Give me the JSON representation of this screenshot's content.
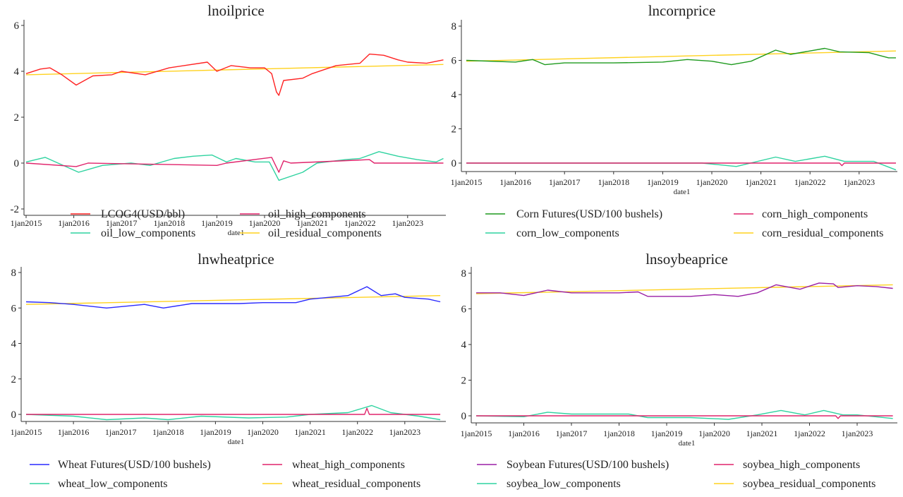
{
  "colors": {
    "red": "#ff2222",
    "pink": "#e0236b",
    "teal": "#2fd3a0",
    "yellow": "#ffd21f",
    "green": "#1e9a1e",
    "blue": "#2a2aff",
    "purple": "#9a1fa5"
  },
  "chart_data": [
    {
      "type": "line",
      "title": "lnoilprice",
      "xlabel": "date1",
      "ylabel": "",
      "xticks": [
        "1jan2015",
        "1jan2016",
        "1jan2017",
        "1jan2018",
        "1jan2019",
        "1jan2020",
        "1jan2021",
        "1jan2022",
        "1jan2023"
      ],
      "yticks": [
        "6",
        "4",
        "2",
        "0",
        "-2"
      ],
      "ylim": [
        -2,
        6
      ],
      "legend": "bottom",
      "series": [
        {
          "name": "LCOG4(USD/bbl)",
          "color": "red",
          "points": [
            [
              2015,
              3.9
            ],
            [
              2015.3,
              4.1
            ],
            [
              2015.5,
              4.15
            ],
            [
              2015.75,
              3.85
            ],
            [
              2016.05,
              3.4
            ],
            [
              2016.4,
              3.8
            ],
            [
              2016.8,
              3.85
            ],
            [
              2017,
              4.0
            ],
            [
              2017.5,
              3.85
            ],
            [
              2018,
              4.15
            ],
            [
              2018.8,
              4.4
            ],
            [
              2019,
              4.0
            ],
            [
              2019.3,
              4.25
            ],
            [
              2019.7,
              4.15
            ],
            [
              2020,
              4.15
            ],
            [
              2020.15,
              3.9
            ],
            [
              2020.25,
              3.1
            ],
            [
              2020.3,
              2.95
            ],
            [
              2020.4,
              3.6
            ],
            [
              2020.8,
              3.7
            ],
            [
              2021,
              3.9
            ],
            [
              2021.5,
              4.25
            ],
            [
              2022,
              4.35
            ],
            [
              2022.2,
              4.75
            ],
            [
              2022.5,
              4.7
            ],
            [
              2022.8,
              4.5
            ],
            [
              2023,
              4.4
            ],
            [
              2023.4,
              4.35
            ],
            [
              2023.75,
              4.5
            ]
          ]
        },
        {
          "name": "oil_high_components",
          "color": "pink",
          "points": [
            [
              2015,
              0
            ],
            [
              2016.05,
              -0.15
            ],
            [
              2016.3,
              0
            ],
            [
              2019,
              -0.1
            ],
            [
              2019.2,
              0
            ],
            [
              2020.15,
              0.25
            ],
            [
              2020.3,
              -0.4
            ],
            [
              2020.4,
              0.1
            ],
            [
              2020.55,
              0
            ],
            [
              2022.2,
              0.15
            ],
            [
              2022.3,
              0
            ],
            [
              2023.75,
              0
            ]
          ]
        },
        {
          "name": "oil_low_components",
          "color": "teal",
          "points": [
            [
              2015,
              0.05
            ],
            [
              2015.4,
              0.25
            ],
            [
              2016.1,
              -0.4
            ],
            [
              2016.6,
              -0.1
            ],
            [
              2017.2,
              0
            ],
            [
              2017.6,
              -0.1
            ],
            [
              2018.1,
              0.2
            ],
            [
              2018.5,
              0.3
            ],
            [
              2018.9,
              0.35
            ],
            [
              2019.2,
              0.05
            ],
            [
              2019.4,
              0.2
            ],
            [
              2019.8,
              0.05
            ],
            [
              2020.1,
              0.05
            ],
            [
              2020.3,
              -0.75
            ],
            [
              2020.8,
              -0.4
            ],
            [
              2021.1,
              0
            ],
            [
              2021.7,
              0.15
            ],
            [
              2022,
              0.2
            ],
            [
              2022.4,
              0.5
            ],
            [
              2022.8,
              0.3
            ],
            [
              2023.2,
              0.15
            ],
            [
              2023.6,
              0.05
            ],
            [
              2023.75,
              0.2
            ]
          ]
        },
        {
          "name": "oil_residual_components",
          "color": "yellow",
          "points": [
            [
              2015,
              3.85
            ],
            [
              2023.75,
              4.3
            ]
          ]
        }
      ]
    },
    {
      "type": "line",
      "title": "lncornprice",
      "xlabel": "date1",
      "ylabel": "",
      "xticks": [
        "1jan2015",
        "1jan2016",
        "1jan2017",
        "1jan2018",
        "1jan2019",
        "1jan2020",
        "1jan2021",
        "1jan2022",
        "1jan2023"
      ],
      "yticks": [
        "8",
        "6",
        "4",
        "2",
        "0"
      ],
      "ylim": [
        0,
        8
      ],
      "legend": "bottom",
      "series": [
        {
          "name": "Corn Futures(USD/100 bushels)",
          "color": "green",
          "points": [
            [
              2015,
              6.0
            ],
            [
              2016,
              5.9
            ],
            [
              2016.35,
              6.05
            ],
            [
              2016.6,
              5.75
            ],
            [
              2017,
              5.85
            ],
            [
              2018,
              5.85
            ],
            [
              2019,
              5.9
            ],
            [
              2019.5,
              6.05
            ],
            [
              2020,
              5.95
            ],
            [
              2020.4,
              5.75
            ],
            [
              2020.8,
              5.95
            ],
            [
              2021.3,
              6.6
            ],
            [
              2021.6,
              6.35
            ],
            [
              2022.3,
              6.7
            ],
            [
              2022.6,
              6.5
            ],
            [
              2023.2,
              6.45
            ],
            [
              2023.6,
              6.15
            ],
            [
              2023.75,
              6.15
            ]
          ]
        },
        {
          "name": "corn_high_components",
          "color": "pink",
          "points": [
            [
              2015,
              0
            ],
            [
              2022.6,
              0
            ],
            [
              2022.65,
              -0.15
            ],
            [
              2022.7,
              0
            ],
            [
              2023.75,
              0
            ]
          ]
        },
        {
          "name": "corn_low_components",
          "color": "teal",
          "points": [
            [
              2015,
              0
            ],
            [
              2019.8,
              0
            ],
            [
              2020.5,
              -0.2
            ],
            [
              2021.3,
              0.35
            ],
            [
              2021.7,
              0.1
            ],
            [
              2022.3,
              0.4
            ],
            [
              2022.7,
              0.1
            ],
            [
              2023.3,
              0.1
            ],
            [
              2023.75,
              -0.4
            ]
          ]
        },
        {
          "name": "corn_residual_components",
          "color": "yellow",
          "points": [
            [
              2015,
              5.95
            ],
            [
              2023.75,
              6.55
            ]
          ]
        }
      ]
    },
    {
      "type": "line",
      "title": "lnwheatprice",
      "xlabel": "date1",
      "ylabel": "",
      "xticks": [
        "1jan2015",
        "1jan2016",
        "1jan2017",
        "1jan2018",
        "1jan2019",
        "1jan2020",
        "1jan2021",
        "1jan2022",
        "1jan2023"
      ],
      "yticks": [
        "8",
        "6",
        "4",
        "2",
        "0"
      ],
      "ylim": [
        0,
        8
      ],
      "legend": "bottom",
      "series": [
        {
          "name": "Wheat Futures(USD/100 bushels)",
          "color": "blue",
          "points": [
            [
              2015,
              6.35
            ],
            [
              2015.5,
              6.3
            ],
            [
              2016,
              6.2
            ],
            [
              2016.7,
              6.0
            ],
            [
              2017.5,
              6.2
            ],
            [
              2017.9,
              6.0
            ],
            [
              2018.5,
              6.25
            ],
            [
              2019.5,
              6.25
            ],
            [
              2020,
              6.3
            ],
            [
              2020.7,
              6.3
            ],
            [
              2021,
              6.5
            ],
            [
              2021.8,
              6.7
            ],
            [
              2022.2,
              7.2
            ],
            [
              2022.5,
              6.7
            ],
            [
              2022.8,
              6.8
            ],
            [
              2023,
              6.6
            ],
            [
              2023.5,
              6.5
            ],
            [
              2023.75,
              6.35
            ]
          ]
        },
        {
          "name": "wheat_high_components",
          "color": "pink",
          "points": [
            [
              2015,
              0
            ],
            [
              2022.15,
              0
            ],
            [
              2022.2,
              0.35
            ],
            [
              2022.25,
              0
            ],
            [
              2023.75,
              0
            ]
          ]
        },
        {
          "name": "wheat_low_components",
          "color": "teal",
          "points": [
            [
              2015,
              0
            ],
            [
              2016,
              -0.1
            ],
            [
              2016.7,
              -0.3
            ],
            [
              2017.5,
              -0.2
            ],
            [
              2018,
              -0.3
            ],
            [
              2018.7,
              -0.1
            ],
            [
              2019.7,
              -0.2
            ],
            [
              2020.5,
              -0.15
            ],
            [
              2021,
              0
            ],
            [
              2021.8,
              0.1
            ],
            [
              2022.3,
              0.5
            ],
            [
              2022.7,
              0.1
            ],
            [
              2023.3,
              -0.1
            ],
            [
              2023.75,
              -0.3
            ]
          ]
        },
        {
          "name": "wheat_residual_components",
          "color": "yellow",
          "points": [
            [
              2015,
              6.2
            ],
            [
              2023.75,
              6.7
            ]
          ]
        }
      ]
    },
    {
      "type": "line",
      "title": "lnsoybeaprice",
      "xlabel": "date1",
      "ylabel": "",
      "xticks": [
        "1jan2015",
        "1jan2016",
        "1jan2017",
        "1jan2018",
        "1jan2019",
        "1jan2020",
        "1jan2021",
        "1jan2022",
        "1jan2023"
      ],
      "yticks": [
        "8",
        "6",
        "4",
        "2",
        "0"
      ],
      "ylim": [
        0,
        8
      ],
      "legend": "bottom",
      "series": [
        {
          "name": "Soybean Futures(USD/100 bushels)",
          "color": "purple",
          "points": [
            [
              2015,
              6.9
            ],
            [
              2015.5,
              6.9
            ],
            [
              2016,
              6.75
            ],
            [
              2016.5,
              7.05
            ],
            [
              2017,
              6.9
            ],
            [
              2018,
              6.9
            ],
            [
              2018.4,
              6.95
            ],
            [
              2018.6,
              6.7
            ],
            [
              2019.5,
              6.7
            ],
            [
              2020,
              6.8
            ],
            [
              2020.5,
              6.7
            ],
            [
              2020.9,
              6.9
            ],
            [
              2021.3,
              7.35
            ],
            [
              2021.8,
              7.1
            ],
            [
              2022.2,
              7.45
            ],
            [
              2022.5,
              7.4
            ],
            [
              2022.6,
              7.2
            ],
            [
              2023,
              7.3
            ],
            [
              2023.4,
              7.25
            ],
            [
              2023.75,
              7.15
            ]
          ]
        },
        {
          "name": "soybea_high_components",
          "color": "pink",
          "points": [
            [
              2015,
              0
            ],
            [
              2022.55,
              0
            ],
            [
              2022.6,
              -0.15
            ],
            [
              2022.65,
              0
            ],
            [
              2023.75,
              0
            ]
          ]
        },
        {
          "name": "soybea_low_components",
          "color": "teal",
          "points": [
            [
              2015,
              0
            ],
            [
              2016,
              -0.05
            ],
            [
              2016.5,
              0.2
            ],
            [
              2017,
              0.1
            ],
            [
              2018.2,
              0.1
            ],
            [
              2018.6,
              -0.1
            ],
            [
              2019.5,
              -0.1
            ],
            [
              2020.3,
              -0.2
            ],
            [
              2020.9,
              0.05
            ],
            [
              2021.4,
              0.3
            ],
            [
              2021.9,
              0.05
            ],
            [
              2022.3,
              0.3
            ],
            [
              2022.7,
              0.05
            ],
            [
              2023,
              0.05
            ],
            [
              2023.75,
              -0.15
            ]
          ]
        },
        {
          "name": "soybea_residual_components",
          "color": "yellow",
          "points": [
            [
              2015,
              6.85
            ],
            [
              2023.75,
              7.35
            ]
          ]
        }
      ]
    }
  ]
}
